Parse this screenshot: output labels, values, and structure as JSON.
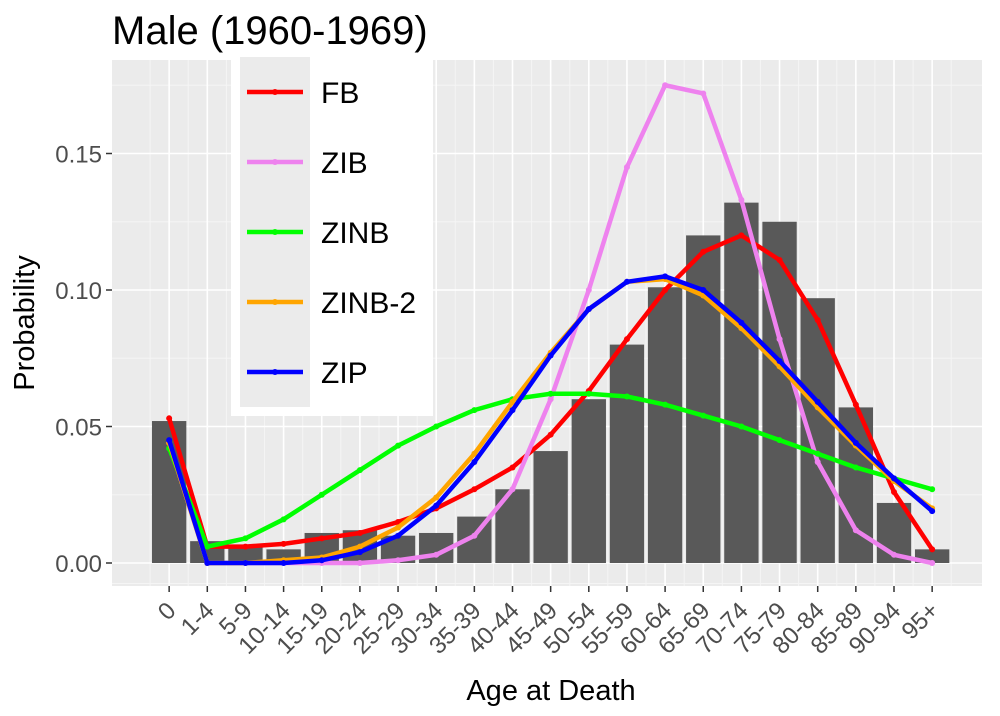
{
  "chart_data": {
    "type": "bar",
    "title": "Male (1960-1969)",
    "xlabel": "Age at Death",
    "ylabel": "Probability",
    "ylim": [
      -0.009,
      0.18
    ],
    "yticks": [
      0.0,
      0.05,
      0.1,
      0.15
    ],
    "ytick_labels": [
      "0.00",
      "0.05",
      "0.10",
      "0.15"
    ],
    "grid": true,
    "legend_position": "top-left",
    "categories": [
      "0",
      "1-4",
      "5-9",
      "10-14",
      "15-19",
      "20-24",
      "25-29",
      "30-34",
      "35-39",
      "40-44",
      "45-49",
      "50-54",
      "55-59",
      "60-64",
      "65-69",
      "70-74",
      "75-79",
      "80-84",
      "85-89",
      "90-94",
      "95+"
    ],
    "bar_values": [
      0.052,
      0.008,
      0.006,
      0.005,
      0.011,
      0.012,
      0.01,
      0.011,
      0.017,
      0.027,
      0.041,
      0.06,
      0.08,
      0.101,
      0.12,
      0.132,
      0.125,
      0.097,
      0.057,
      0.022,
      0.005
    ],
    "series": [
      {
        "name": "FB",
        "color": "#ff0000",
        "values": [
          0.053,
          0.006,
          0.006,
          0.007,
          0.009,
          0.011,
          0.015,
          0.02,
          0.027,
          0.035,
          0.047,
          0.063,
          0.082,
          0.1,
          0.114,
          0.12,
          0.111,
          0.089,
          0.058,
          0.026,
          0.005
        ]
      },
      {
        "name": "ZIB",
        "color": "#ee82ee",
        "values": [
          0.044,
          0.0,
          0.0,
          0.0,
          0.0,
          0.0,
          0.001,
          0.003,
          0.01,
          0.027,
          0.06,
          0.1,
          0.145,
          0.175,
          0.172,
          0.133,
          0.082,
          0.037,
          0.012,
          0.003,
          0.0
        ]
      },
      {
        "name": "ZINB",
        "color": "#00ff00",
        "values": [
          0.042,
          0.006,
          0.009,
          0.016,
          0.025,
          0.034,
          0.043,
          0.05,
          0.056,
          0.06,
          0.062,
          0.062,
          0.061,
          0.058,
          0.054,
          0.05,
          0.045,
          0.04,
          0.035,
          0.031,
          0.027
        ]
      },
      {
        "name": "ZINB-2",
        "color": "#ffa500",
        "values": [
          0.044,
          0.0,
          0.0,
          0.001,
          0.002,
          0.006,
          0.013,
          0.024,
          0.04,
          0.059,
          0.077,
          0.093,
          0.103,
          0.104,
          0.098,
          0.086,
          0.072,
          0.057,
          0.043,
          0.03,
          0.02
        ]
      },
      {
        "name": "ZIP",
        "color": "#0000ff",
        "values": [
          0.045,
          0.0,
          0.0,
          0.0,
          0.001,
          0.004,
          0.01,
          0.021,
          0.037,
          0.056,
          0.076,
          0.093,
          0.103,
          0.105,
          0.1,
          0.088,
          0.074,
          0.059,
          0.044,
          0.031,
          0.019
        ]
      }
    ]
  }
}
